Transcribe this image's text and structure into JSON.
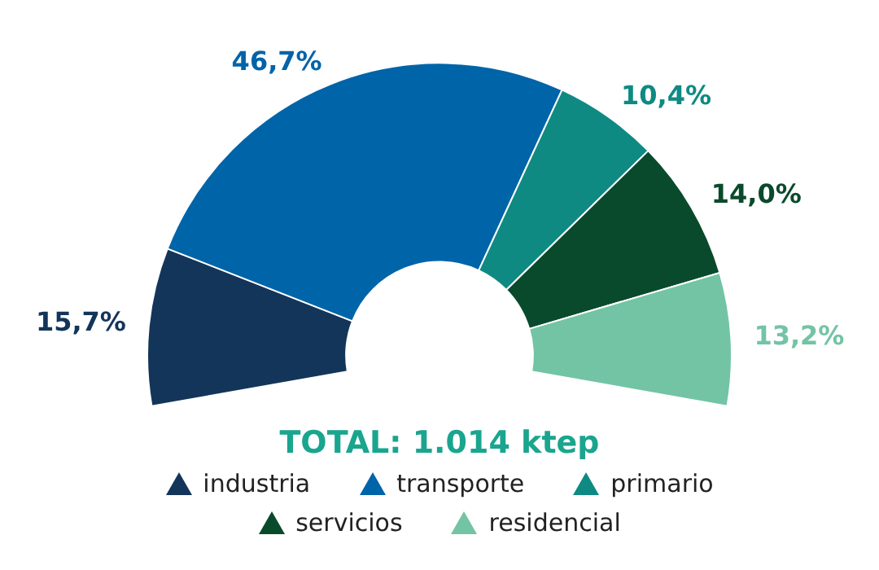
{
  "chart_data": {
    "type": "donut",
    "title": "TOTAL: 1.014 ktep",
    "categories": [
      "industria",
      "transporte",
      "primario",
      "servicios",
      "residencial"
    ],
    "values": [
      15.7,
      46.7,
      10.4,
      14.0,
      13.2
    ],
    "value_labels": [
      "15,7%",
      "46,7%",
      "10,4%",
      "14,0%",
      "13,2%"
    ],
    "colors": [
      "#14355a",
      "#0064a8",
      "#0e8a83",
      "#0a4a2c",
      "#72c4a5"
    ],
    "legend": "bottom"
  }
}
